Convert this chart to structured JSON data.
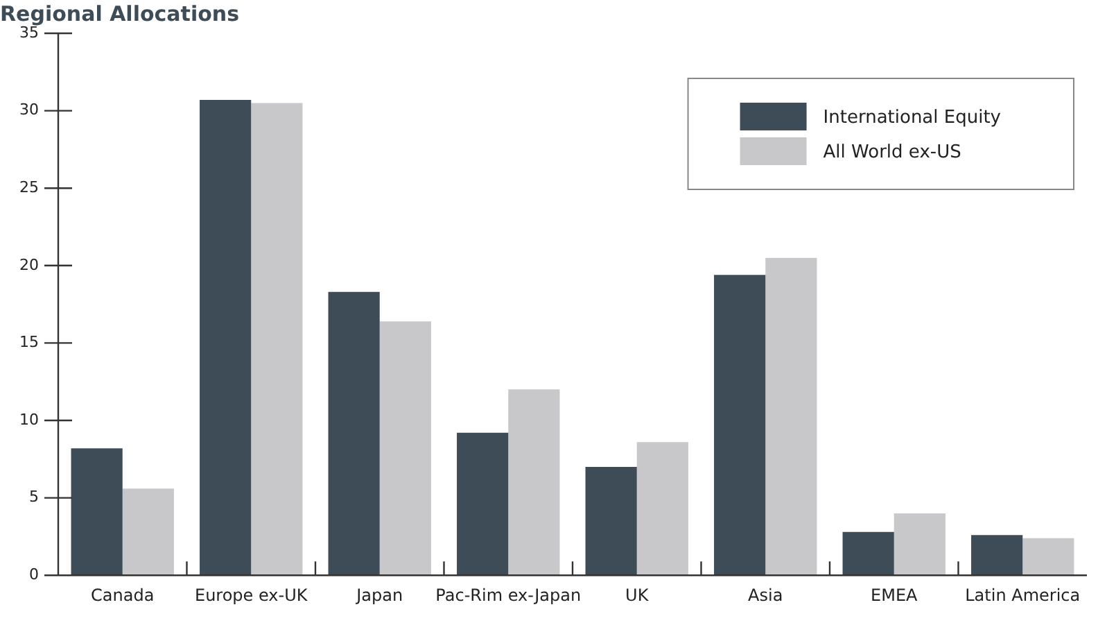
{
  "chart_data": {
    "type": "bar",
    "title": "Regional Allocations",
    "categories": [
      "Canada",
      "Europe ex-UK",
      "Japan",
      "Pac-Rim ex-Japan",
      "UK",
      "Asia",
      "EMEA",
      "Latin America"
    ],
    "series": [
      {
        "name": "International Equity",
        "color": "#3d4c57",
        "values": [
          8.2,
          30.7,
          18.3,
          9.2,
          7.0,
          19.4,
          2.8,
          2.6
        ]
      },
      {
        "name": "All World ex-US",
        "color": "#c8c8ca",
        "values": [
          5.6,
          30.5,
          16.4,
          12.0,
          8.6,
          20.5,
          4.0,
          2.4
        ]
      }
    ],
    "ylim": [
      0,
      35
    ],
    "yticks": [
      0,
      5,
      10,
      15,
      20,
      25,
      30,
      35
    ],
    "grid": false,
    "legend": "top right"
  }
}
